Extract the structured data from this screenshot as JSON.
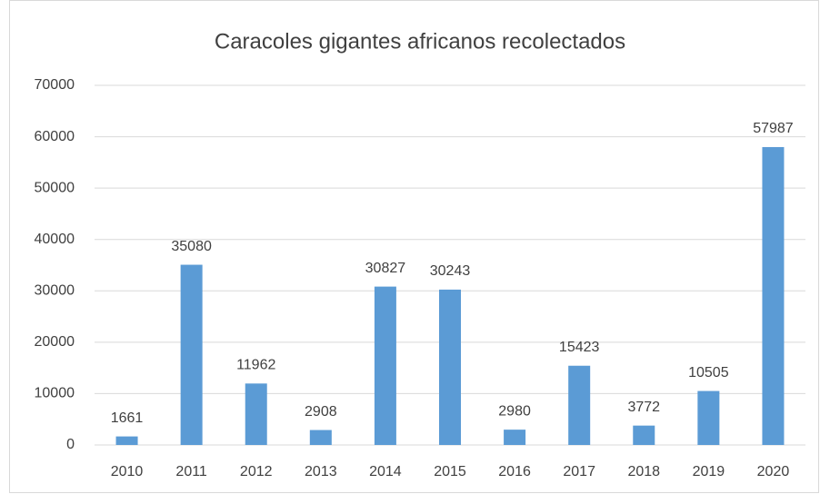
{
  "chart_data": {
    "type": "bar",
    "title": "Caracoles gigantes africanos recolectados",
    "categories": [
      "2010",
      "2011",
      "2012",
      "2013",
      "2014",
      "2015",
      "2016",
      "2017",
      "2018",
      "2019",
      "2020"
    ],
    "values": [
      1661,
      35080,
      11962,
      2908,
      30827,
      30243,
      2980,
      15423,
      3772,
      10505,
      57987
    ],
    "color": "#5b9bd5",
    "ylim": [
      0,
      70000
    ],
    "yticks": [
      0,
      10000,
      20000,
      30000,
      40000,
      50000,
      60000,
      70000
    ],
    "grid": true
  }
}
